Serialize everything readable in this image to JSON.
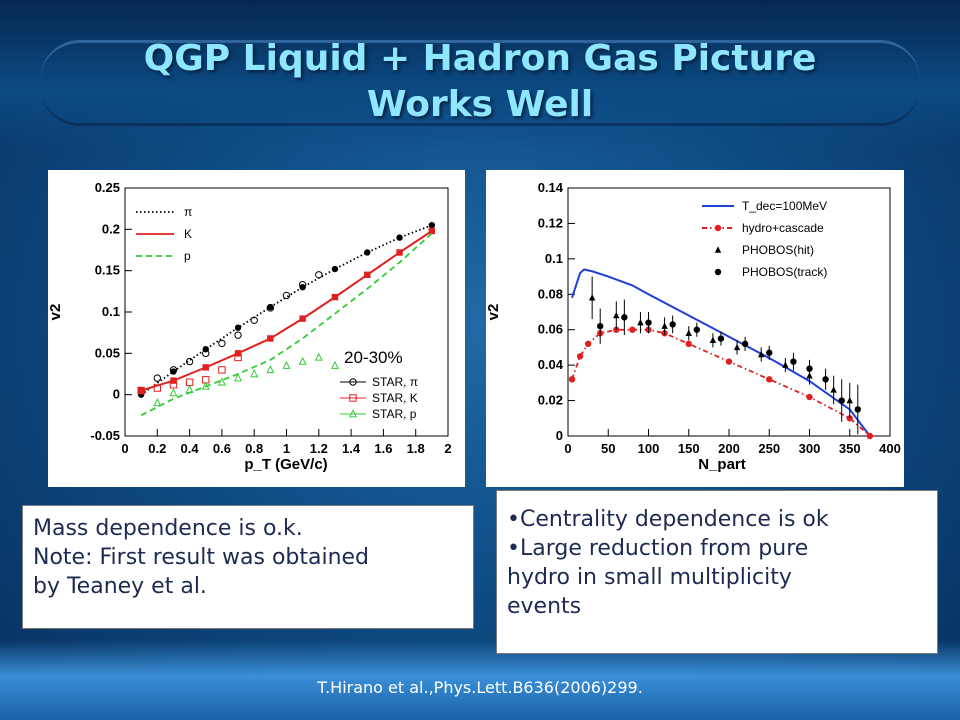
{
  "slide": {
    "title_line1": "QGP Liquid + Hadron Gas Picture",
    "title_line2": "Works Well",
    "left_box": [
      "Mass dependence is o.k.",
      "Note: First result was obtained",
      "by Teaney et al."
    ],
    "right_box": [
      "•Centrality dependence is ok",
      "•Large reduction from pure",
      "hydro in small multiplicity",
      "events"
    ],
    "footer": "T.Hirano et al.,Phys.Lett.B636(2006)299.",
    "colors": {
      "title": "#8fe7ff",
      "box_text": "#1d2a52"
    }
  },
  "chart_data": [
    {
      "type": "line",
      "annotation": "20-30%",
      "xlabel": "p_T (GeV/c)",
      "ylabel": "v2",
      "xlim": [
        0,
        2
      ],
      "ylim": [
        -0.05,
        0.25
      ],
      "xticks": [
        "0",
        "0.2",
        "0.4",
        "0.6",
        "0.8",
        "1",
        "1.2",
        "1.4",
        "1.6",
        "1.8",
        "2"
      ],
      "yticks": [
        "-0.05",
        "0",
        "0.05",
        "0.1",
        "0.15",
        "0.2",
        "0.25"
      ],
      "legend_top": [
        "π",
        "K",
        "p"
      ],
      "legend_bottom": [
        "STAR, π",
        "STAR, K",
        "STAR, p"
      ],
      "series": [
        {
          "name": "π",
          "style": "dotted",
          "color": "#000000",
          "x": [
            0.1,
            0.3,
            0.5,
            0.7,
            0.9,
            1.1,
            1.3,
            1.5,
            1.7,
            1.9
          ],
          "y": [
            0.0,
            0.028,
            0.055,
            0.081,
            0.106,
            0.13,
            0.152,
            0.172,
            0.19,
            0.205
          ]
        },
        {
          "name": "K",
          "style": "solid",
          "color": "#e02020",
          "x": [
            0.1,
            0.3,
            0.5,
            0.7,
            0.9,
            1.1,
            1.3,
            1.5,
            1.7,
            1.9
          ],
          "y": [
            0.005,
            0.017,
            0.033,
            0.05,
            0.068,
            0.092,
            0.118,
            0.145,
            0.172,
            0.198
          ]
        },
        {
          "name": "p",
          "style": "dashed",
          "color": "#33cc33",
          "x": [
            0.1,
            0.3,
            0.5,
            0.7,
            0.9,
            1.1,
            1.3,
            1.5,
            1.7,
            1.9
          ],
          "y": [
            -0.025,
            -0.005,
            0.01,
            0.025,
            0.042,
            0.068,
            0.098,
            0.128,
            0.16,
            0.195
          ]
        },
        {
          "name": "STAR, π",
          "marker": "open-circle",
          "color": "#000000",
          "x": [
            0.2,
            0.3,
            0.4,
            0.5,
            0.6,
            0.7,
            0.8,
            0.9,
            1.0,
            1.1,
            1.2
          ],
          "y": [
            0.02,
            0.03,
            0.04,
            0.05,
            0.062,
            0.072,
            0.09,
            0.105,
            0.12,
            0.133,
            0.145
          ]
        },
        {
          "name": "STAR, K",
          "marker": "open-square",
          "color": "#e02020",
          "x": [
            0.1,
            0.2,
            0.3,
            0.4,
            0.5,
            0.6,
            0.7
          ],
          "y": [
            0.005,
            0.008,
            0.012,
            0.015,
            0.018,
            0.03,
            0.045
          ]
        },
        {
          "name": "STAR, p",
          "marker": "open-triangle",
          "color": "#33cc33",
          "x": [
            0.2,
            0.3,
            0.4,
            0.5,
            0.6,
            0.7,
            0.8,
            0.9,
            1.0,
            1.1,
            1.2,
            1.3
          ],
          "y": [
            -0.01,
            0.002,
            0.006,
            0.01,
            0.015,
            0.02,
            0.025,
            0.03,
            0.035,
            0.04,
            0.045,
            0.035
          ]
        }
      ]
    },
    {
      "type": "line",
      "xlabel": "N_part",
      "ylabel": "v2",
      "xlim": [
        0,
        400
      ],
      "ylim": [
        0,
        0.14
      ],
      "xticks": [
        "0",
        "50",
        "100",
        "150",
        "200",
        "250",
        "300",
        "350",
        "400"
      ],
      "yticks": [
        "0",
        "0.02",
        "0.04",
        "0.06",
        "0.08",
        "0.1",
        "0.12",
        "0.14"
      ],
      "legend": [
        "T_dec=100MeV",
        "hydro+cascade",
        "PHOBOS(hit)",
        "PHOBOS(track)"
      ],
      "series": [
        {
          "name": "T_dec=100MeV",
          "style": "solid",
          "color": "#1f3fd6",
          "x": [
            5,
            10,
            15,
            20,
            30,
            50,
            80,
            100,
            150,
            200,
            250,
            300,
            350,
            375
          ],
          "y": [
            0.078,
            0.085,
            0.092,
            0.094,
            0.093,
            0.09,
            0.085,
            0.08,
            0.068,
            0.056,
            0.044,
            0.031,
            0.015,
            0.0
          ]
        },
        {
          "name": "hydro+cascade",
          "style": "dashed-dot",
          "color": "#e02020",
          "x": [
            5,
            15,
            25,
            40,
            60,
            80,
            100,
            120,
            150,
            200,
            250,
            300,
            350,
            375
          ],
          "y": [
            0.032,
            0.045,
            0.052,
            0.058,
            0.06,
            0.06,
            0.06,
            0.058,
            0.052,
            0.042,
            0.032,
            0.022,
            0.01,
            0.0
          ]
        },
        {
          "name": "PHOBOS(hit)",
          "marker": "filled-triangle",
          "color": "#000000",
          "x": [
            30,
            60,
            90,
            120,
            150,
            180,
            210,
            240,
            270,
            300,
            330,
            350
          ],
          "y": [
            0.078,
            0.068,
            0.064,
            0.062,
            0.058,
            0.054,
            0.05,
            0.046,
            0.04,
            0.034,
            0.026,
            0.02
          ],
          "err": [
            0.012,
            0.008,
            0.006,
            0.005,
            0.004,
            0.004,
            0.004,
            0.004,
            0.004,
            0.005,
            0.008,
            0.01
          ]
        },
        {
          "name": "PHOBOS(track)",
          "marker": "filled-circle",
          "color": "#000000",
          "x": [
            40,
            70,
            100,
            130,
            160,
            190,
            220,
            250,
            280,
            300,
            320,
            340,
            360
          ],
          "y": [
            0.062,
            0.067,
            0.064,
            0.063,
            0.06,
            0.055,
            0.052,
            0.047,
            0.042,
            0.038,
            0.032,
            0.02,
            0.015
          ],
          "err": [
            0.01,
            0.01,
            0.006,
            0.005,
            0.004,
            0.004,
            0.004,
            0.004,
            0.005,
            0.005,
            0.006,
            0.012,
            0.014
          ]
        }
      ]
    }
  ]
}
